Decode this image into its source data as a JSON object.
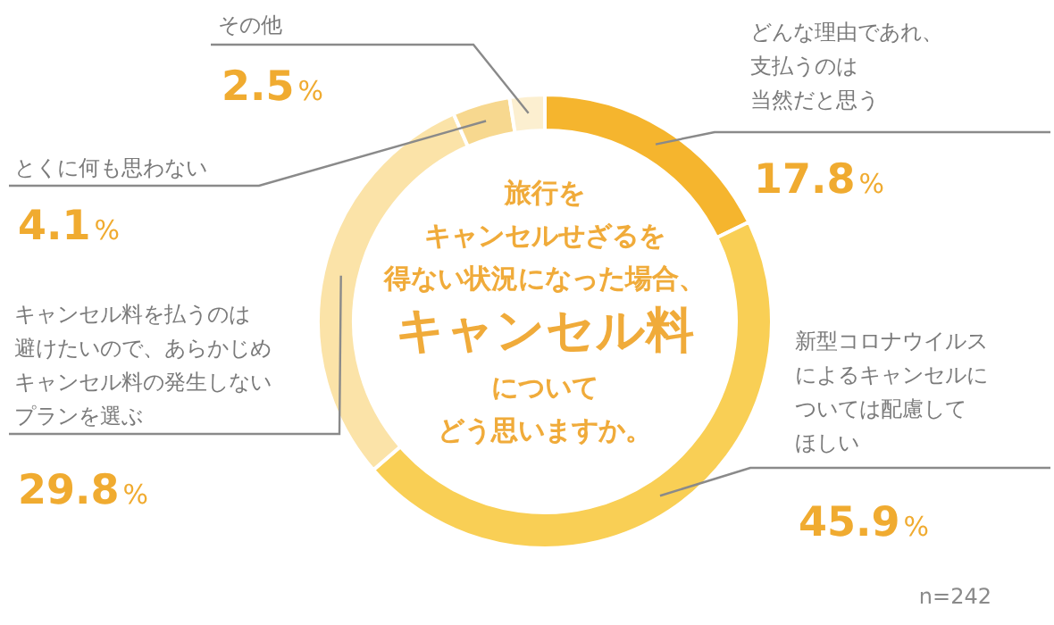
{
  "chart_data": {
    "type": "donut",
    "title": "旅行をキャンセルせざるを得ない状況になった場合、キャンセル料についてどう思いますか。",
    "categories": [
      "どんな理由であれ、支払うのは当然だと思う",
      "新型コロナウイルスによるキャンセルについては配慮してほしい",
      "キャンセル料を払うのは避けたいので、あらかじめキャンセル料の発生しないプランを選ぶ",
      "とくに何も思わない",
      "その他"
    ],
    "values": [
      17.8,
      45.9,
      29.8,
      4.1,
      2.5
    ],
    "value_labels": [
      "17.8%",
      "45.9%",
      "29.8%",
      "4.1%",
      "2.5%"
    ],
    "colors": [
      "#f5b52e",
      "#f9cf55",
      "#fbe3a8",
      "#f7d88f",
      "#fcefd0"
    ],
    "annotations": [
      "n=242"
    ]
  }
}
